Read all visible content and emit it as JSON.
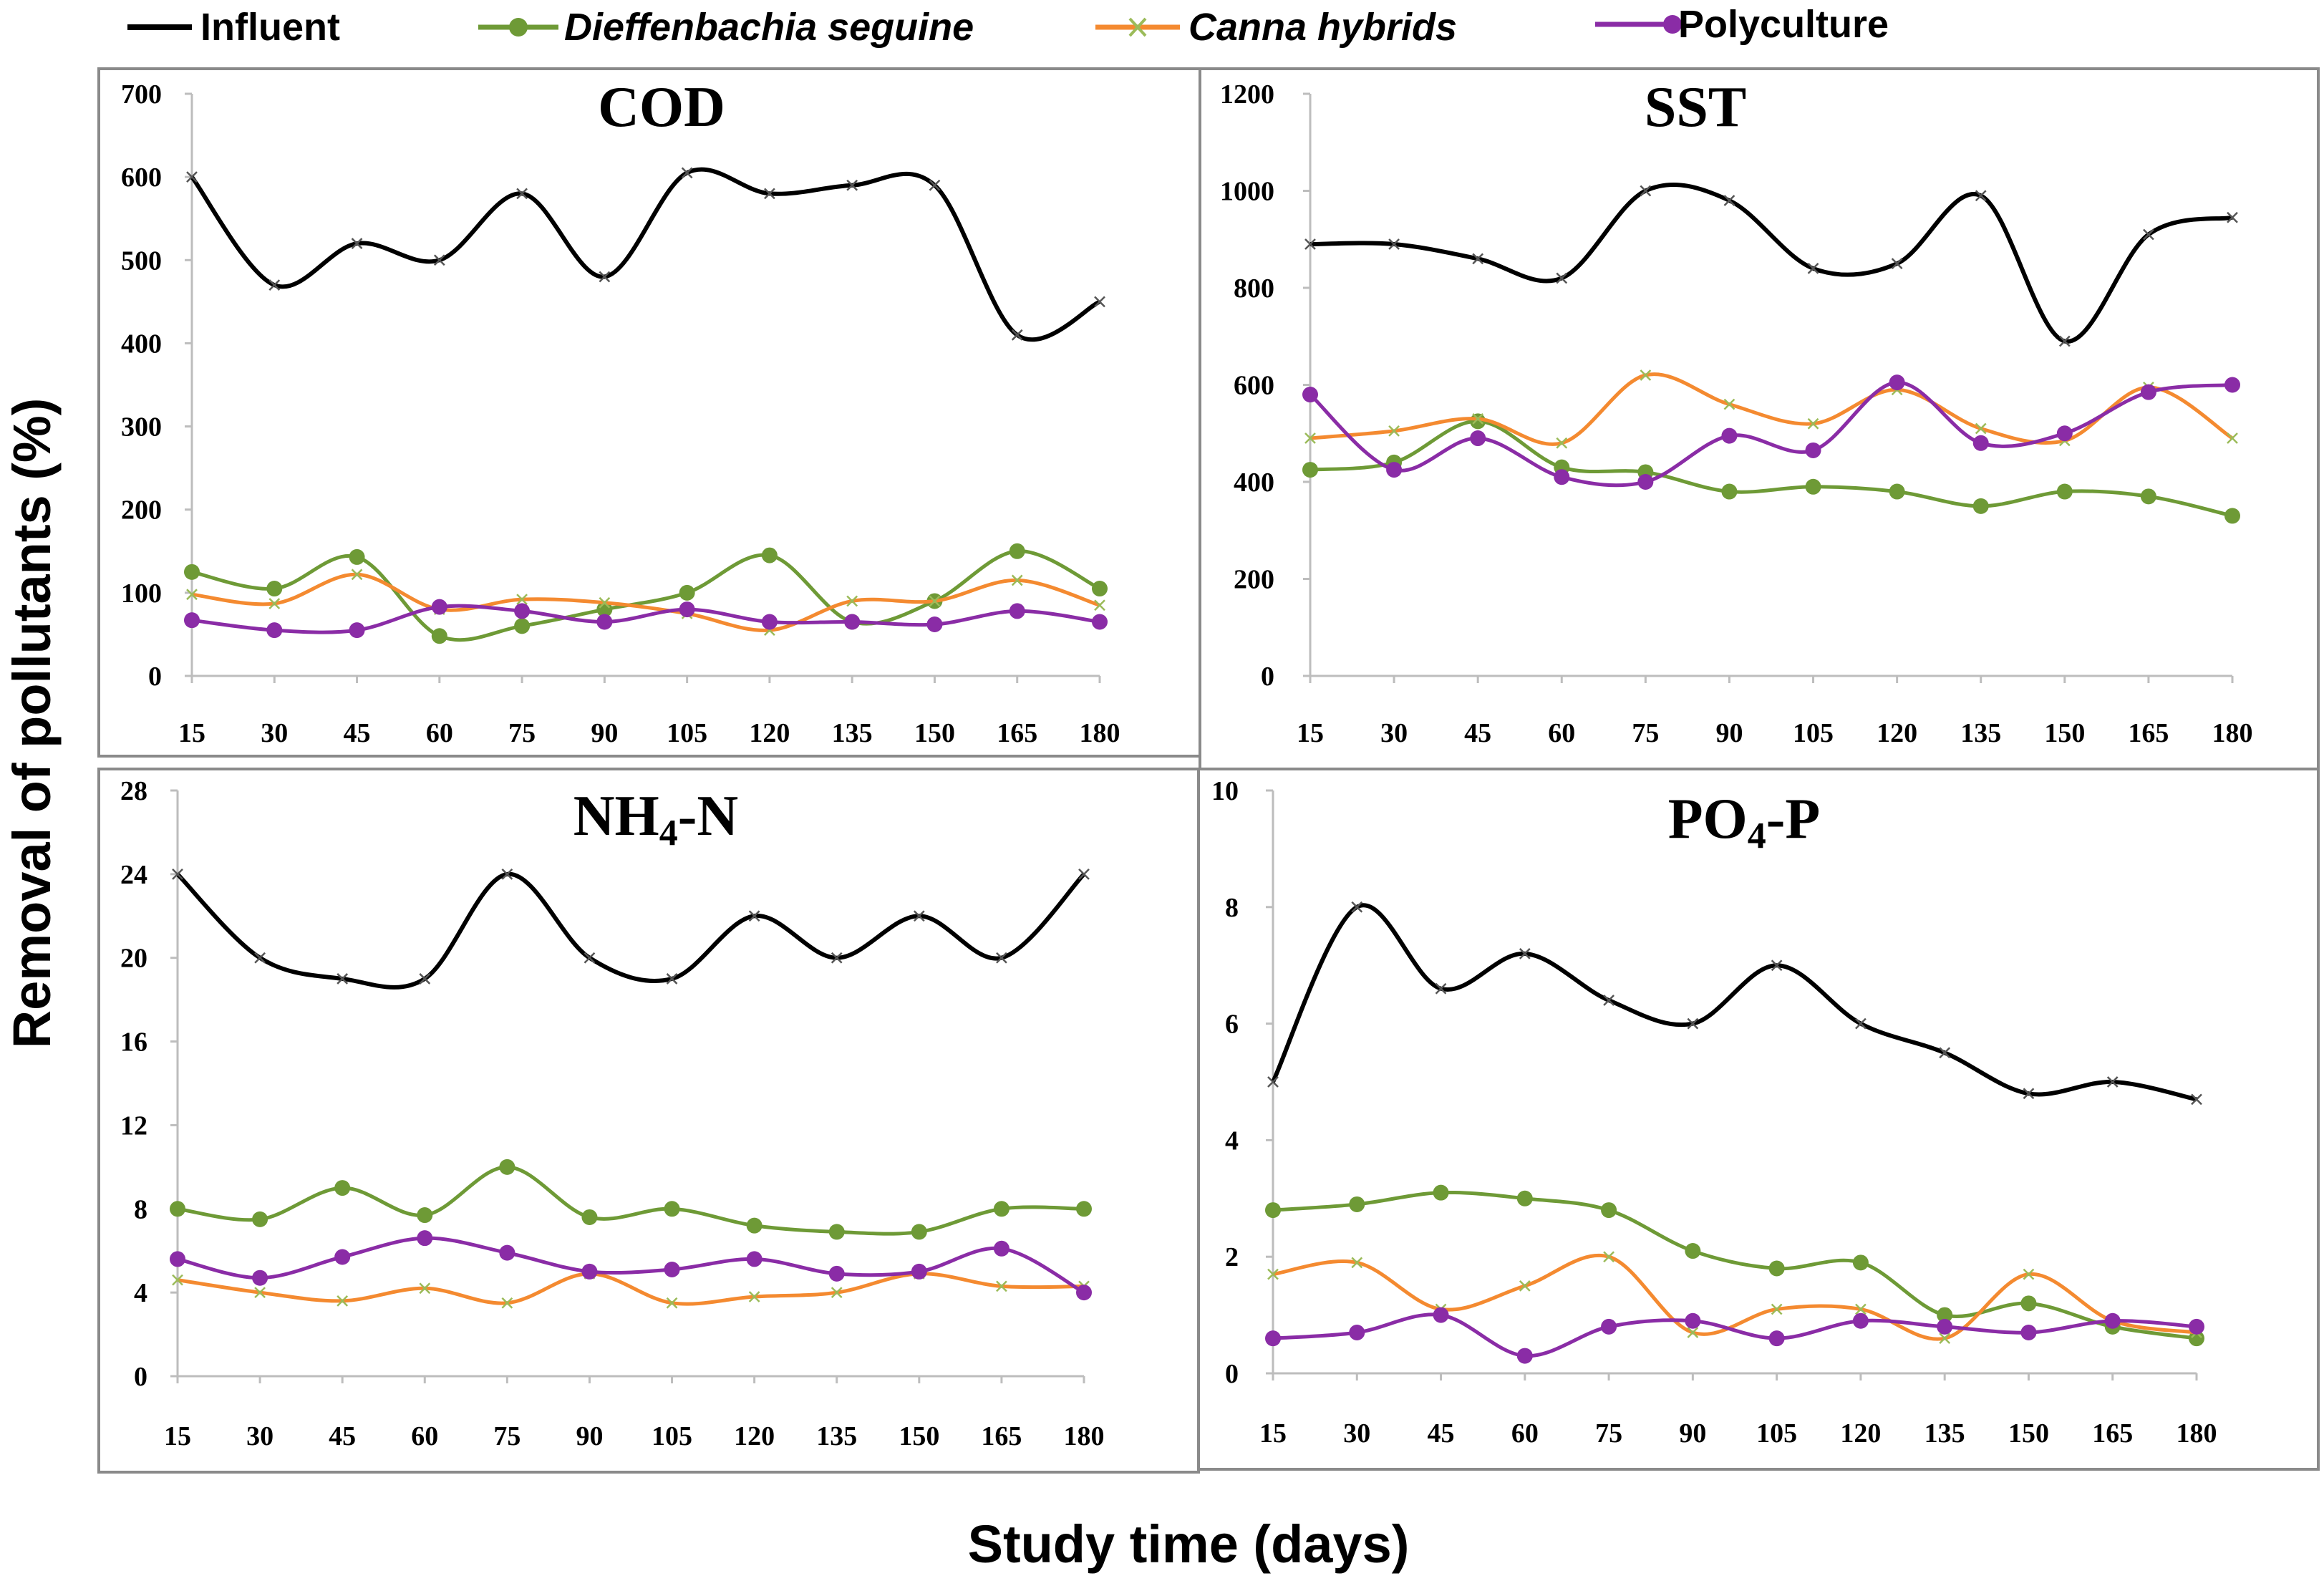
{
  "figure": {
    "ylabel": "Removal of pollutants (%)",
    "xlabel": "Study time (days)"
  },
  "legend": [
    {
      "name": "Influent",
      "italic": false,
      "color": "#000000",
      "marker": "x"
    },
    {
      "name": "Dieffenbachia seguine",
      "italic": true,
      "color": "#6e9a36",
      "marker": "circle"
    },
    {
      "name": "Canna hybrids",
      "italic": true,
      "color": "#f48a30",
      "marker": "x"
    },
    {
      "name": "Polyculture",
      "italic": false,
      "color": "#8a2ca6",
      "marker": "circle"
    }
  ],
  "chart_data": [
    {
      "type": "line",
      "title": "COD",
      "title_sub": "",
      "title_rest": "",
      "x": [
        15,
        30,
        45,
        60,
        75,
        90,
        105,
        120,
        135,
        150,
        165,
        180
      ],
      "ylim": [
        0,
        700
      ],
      "yticks": [
        0,
        100,
        200,
        300,
        400,
        500,
        600,
        700
      ],
      "series": [
        {
          "name": "Influent",
          "values": [
            600,
            470,
            520,
            500,
            580,
            480,
            605,
            580,
            590,
            590,
            410,
            450
          ]
        },
        {
          "name": "Dieffenbachia seguine",
          "values": [
            125,
            105,
            143,
            48,
            60,
            80,
            100,
            145,
            65,
            90,
            150,
            105
          ]
        },
        {
          "name": "Canna hybrids",
          "values": [
            98,
            87,
            122,
            80,
            92,
            88,
            75,
            55,
            90,
            90,
            115,
            85
          ]
        },
        {
          "name": "Polyculture",
          "values": [
            67,
            55,
            55,
            83,
            78,
            65,
            80,
            65,
            65,
            62,
            78,
            65
          ]
        }
      ]
    },
    {
      "type": "line",
      "title": "SST",
      "title_sub": "",
      "title_rest": "",
      "x": [
        15,
        30,
        45,
        60,
        75,
        90,
        105,
        120,
        135,
        150,
        165,
        180
      ],
      "ylim": [
        0,
        1200
      ],
      "yticks": [
        0,
        200,
        400,
        600,
        800,
        1000,
        1200
      ],
      "series": [
        {
          "name": "Influent",
          "values": [
            890,
            890,
            860,
            820,
            1000,
            980,
            840,
            850,
            990,
            690,
            910,
            945
          ]
        },
        {
          "name": "Dieffenbachia seguine",
          "values": [
            425,
            440,
            525,
            430,
            420,
            380,
            390,
            380,
            350,
            380,
            370,
            330
          ]
        },
        {
          "name": "Canna hybrids",
          "values": [
            490,
            505,
            530,
            480,
            620,
            560,
            520,
            590,
            510,
            485,
            595,
            490
          ]
        },
        {
          "name": "Polyculture",
          "values": [
            580,
            425,
            490,
            410,
            400,
            495,
            465,
            605,
            480,
            500,
            585,
            600
          ]
        }
      ]
    },
    {
      "type": "line",
      "title": "NH",
      "title_sub": "4",
      "title_rest": "-N",
      "x": [
        15,
        30,
        45,
        60,
        75,
        90,
        105,
        120,
        135,
        150,
        165,
        180
      ],
      "ylim": [
        0,
        28
      ],
      "yticks": [
        0,
        4,
        8,
        12,
        16,
        20,
        24,
        28
      ],
      "series": [
        {
          "name": "Influent",
          "values": [
            24,
            20,
            19,
            19,
            24,
            20,
            19,
            22,
            20,
            22,
            20,
            24
          ]
        },
        {
          "name": "Dieffenbachia seguine",
          "values": [
            8,
            7.5,
            9,
            7.7,
            10,
            7.6,
            8,
            7.2,
            6.9,
            6.9,
            8,
            8
          ]
        },
        {
          "name": "Canna hybrids",
          "values": [
            4.6,
            4,
            3.6,
            4.2,
            3.5,
            4.9,
            3.5,
            3.8,
            4,
            4.9,
            4.3,
            4.3
          ]
        },
        {
          "name": "Polyculture",
          "values": [
            5.6,
            4.7,
            5.7,
            6.6,
            5.9,
            5,
            5.1,
            5.6,
            4.9,
            5,
            6.1,
            4
          ]
        }
      ]
    },
    {
      "type": "line",
      "title": "PO",
      "title_sub": "4",
      "title_rest": "-P",
      "x": [
        15,
        30,
        45,
        60,
        75,
        90,
        105,
        120,
        135,
        150,
        165,
        180
      ],
      "ylim": [
        0,
        10
      ],
      "yticks": [
        0,
        2,
        4,
        6,
        8,
        10
      ],
      "series": [
        {
          "name": "Influent",
          "values": [
            5,
            8,
            6.6,
            7.2,
            6.4,
            6,
            7,
            6,
            5.5,
            4.8,
            5,
            4.7
          ]
        },
        {
          "name": "Dieffenbachia seguine",
          "values": [
            2.8,
            2.9,
            3.1,
            3,
            2.8,
            2.1,
            1.8,
            1.9,
            1,
            1.2,
            0.8,
            0.6
          ]
        },
        {
          "name": "Canna hybrids",
          "values": [
            1.7,
            1.9,
            1.1,
            1.5,
            2,
            0.7,
            1.1,
            1.1,
            0.6,
            1.7,
            0.9,
            0.7
          ]
        },
        {
          "name": "Polyculture",
          "values": [
            0.6,
            0.7,
            1,
            0.3,
            0.8,
            0.9,
            0.6,
            0.9,
            0.8,
            0.7,
            0.9,
            0.8
          ]
        }
      ]
    }
  ]
}
